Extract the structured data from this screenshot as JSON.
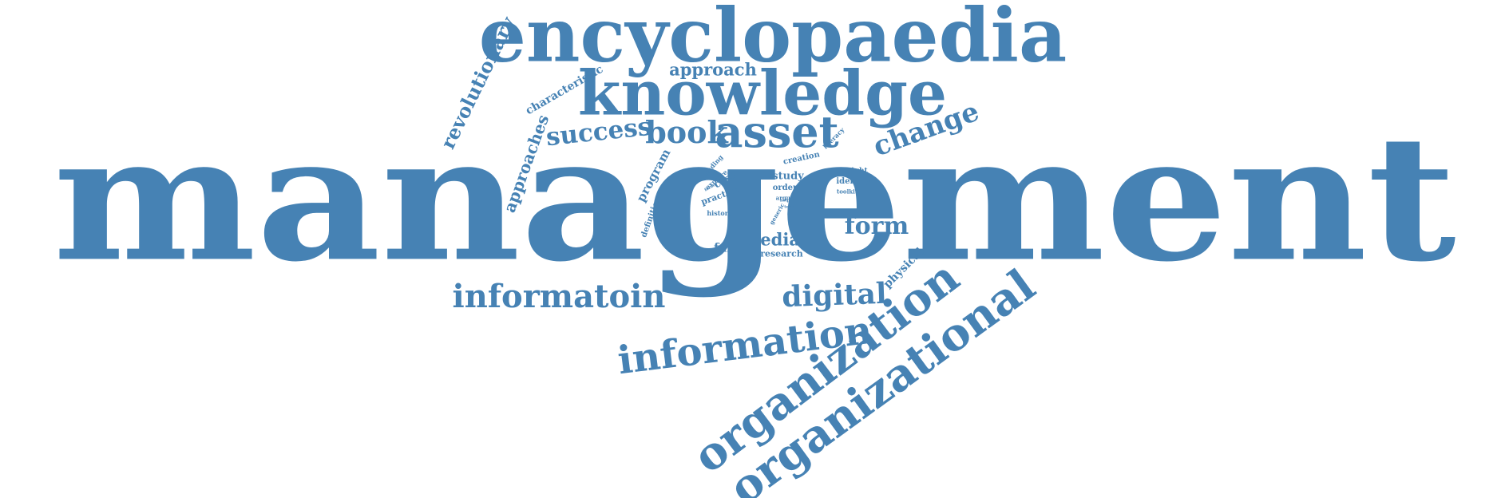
{
  "color": "#4682b4",
  "background": "#ffffff",
  "words": [
    {
      "text": "management"
    },
    {
      "text": "encyclopaedia"
    },
    {
      "text": "knowledge"
    },
    {
      "text": "organizational"
    },
    {
      "text": "organization"
    },
    {
      "text": "information"
    },
    {
      "text": "informatoin"
    },
    {
      "text": "asset"
    },
    {
      "text": "digital"
    },
    {
      "text": "change"
    },
    {
      "text": "book"
    },
    {
      "text": "success"
    },
    {
      "text": "form"
    },
    {
      "text": "revolutionary"
    },
    {
      "text": "approaches"
    },
    {
      "text": "approach"
    },
    {
      "text": "media"
    },
    {
      "text": "characteristic"
    },
    {
      "text": "program"
    },
    {
      "text": "physical"
    },
    {
      "text": "failure"
    },
    {
      "text": "study"
    },
    {
      "text": "order"
    },
    {
      "text": "research"
    },
    {
      "text": "practice"
    },
    {
      "text": "case"
    },
    {
      "text": "identity"
    },
    {
      "text": "insight"
    },
    {
      "text": "definition"
    },
    {
      "text": "creation"
    },
    {
      "text": "explore"
    },
    {
      "text": "history"
    },
    {
      "text": "literacy"
    },
    {
      "text": "toolkit"
    },
    {
      "text": "argue"
    },
    {
      "text": "finding"
    },
    {
      "text": "generic"
    },
    {
      "text": "help"
    },
    {
      "text": "form"
    },
    {
      "text": "term"
    }
  ]
}
